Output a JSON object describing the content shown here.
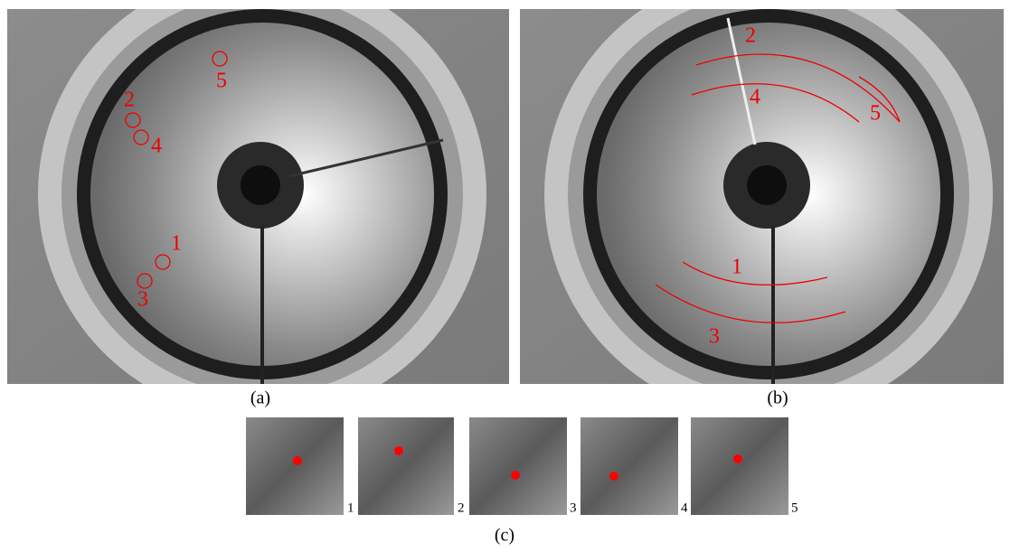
{
  "panel_a": {
    "caption": "(a)",
    "markers": [
      "1",
      "2",
      "3",
      "4",
      "5"
    ]
  },
  "panel_b": {
    "caption": "(b)",
    "curves": [
      "1",
      "2",
      "3",
      "4",
      "5"
    ]
  },
  "panel_c": {
    "caption": "(c)",
    "thumbnails": [
      "1",
      "2",
      "3",
      "4",
      "5"
    ]
  }
}
